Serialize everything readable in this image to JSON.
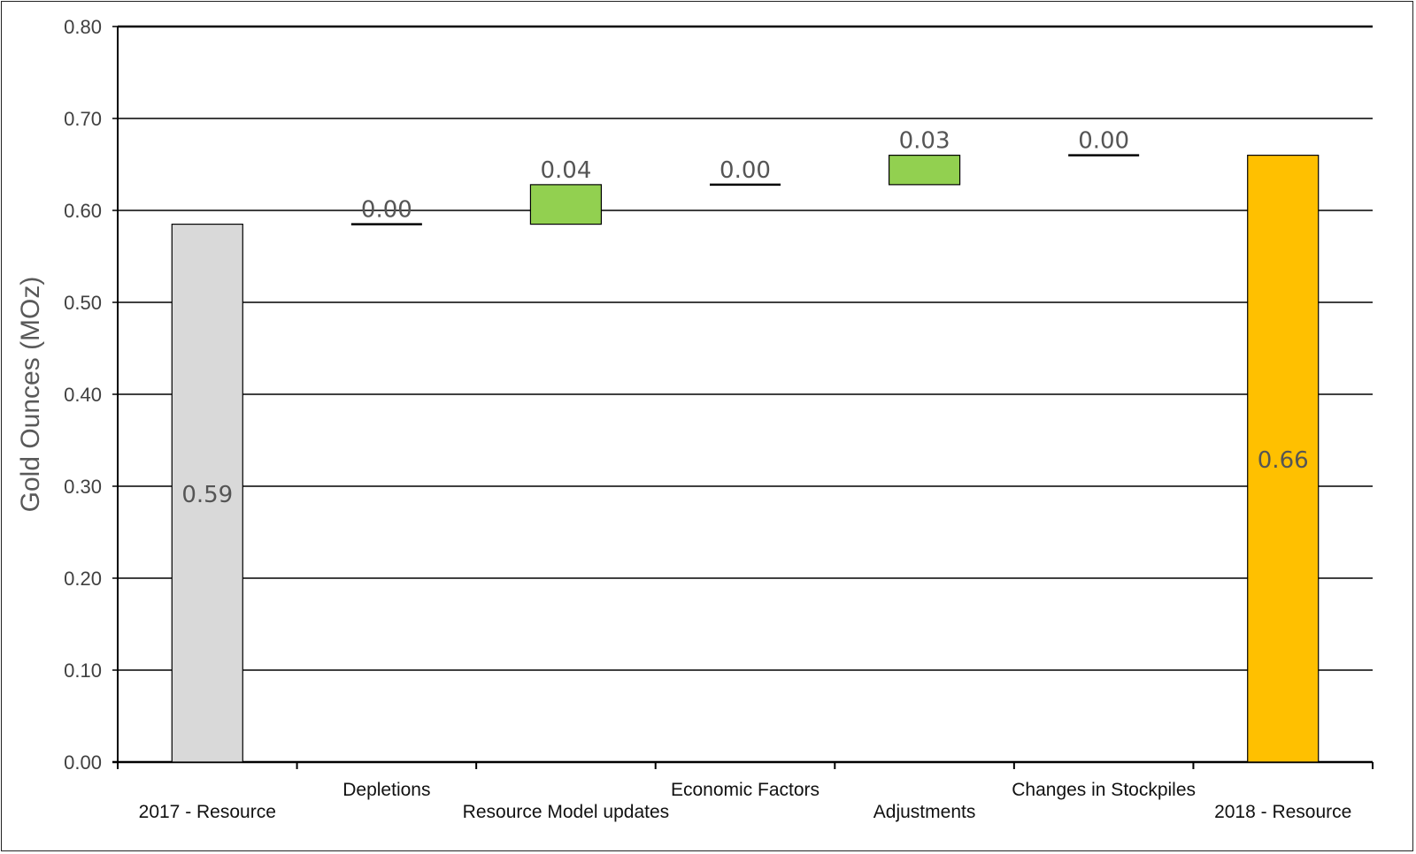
{
  "chart_data": {
    "type": "waterfall",
    "ylabel": "Gold Ounces (MOz)",
    "ylim": [
      0,
      0.8
    ],
    "yticks": [
      "0.00",
      "0.10",
      "0.20",
      "0.30",
      "0.40",
      "0.50",
      "0.60",
      "0.70",
      "0.80"
    ],
    "grid": true,
    "categories": [
      "2017 - Resource",
      "Depletions",
      "Resource Model updates",
      "Economic Factors",
      "Adjustments",
      "Changes in Stockpiles",
      "2018 - Resource"
    ],
    "bars": [
      {
        "kind": "total",
        "start": 0,
        "end": 0.585,
        "label": "0.59"
      },
      {
        "kind": "delta",
        "start": 0.585,
        "end": 0.585,
        "label": "0.00"
      },
      {
        "kind": "delta",
        "start": 0.585,
        "end": 0.628,
        "label": "0.04"
      },
      {
        "kind": "delta",
        "start": 0.628,
        "end": 0.628,
        "label": "0.00"
      },
      {
        "kind": "delta",
        "start": 0.628,
        "end": 0.66,
        "label": "0.03"
      },
      {
        "kind": "delta",
        "start": 0.66,
        "end": 0.66,
        "label": "0.00"
      },
      {
        "kind": "total",
        "start": 0,
        "end": 0.66,
        "label": "0.66"
      }
    ],
    "colors": {
      "start_total": "#d9d9d9",
      "increase": "#92d050",
      "end_total": "#ffc000",
      "grid": "#000000"
    }
  }
}
